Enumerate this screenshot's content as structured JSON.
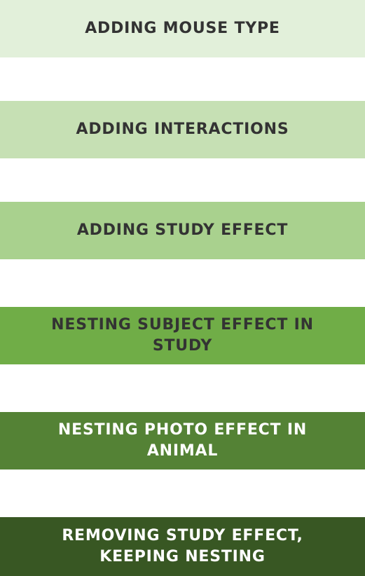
{
  "steps": [
    {
      "label": "ADDING MOUSE TYPE",
      "bg": "#e2f0da",
      "color": "#333333"
    },
    {
      "label": "ADDING INTERACTIONS",
      "bg": "#c6e0b4",
      "color": "#333333"
    },
    {
      "label": "ADDING STUDY EFFECT",
      "bg": "#a9d18e",
      "color": "#333333"
    },
    {
      "label": "NESTING SUBJECT EFFECT IN STUDY",
      "bg": "#70ad47",
      "color": "#333333"
    },
    {
      "label": "NESTING PHOTO EFFECT IN ANIMAL",
      "bg": "#548235",
      "color": "#ffffff"
    },
    {
      "label": "REMOVING STUDY EFFECT, KEEPING NESTING",
      "bg": "#385723",
      "color": "#ffffff"
    }
  ]
}
